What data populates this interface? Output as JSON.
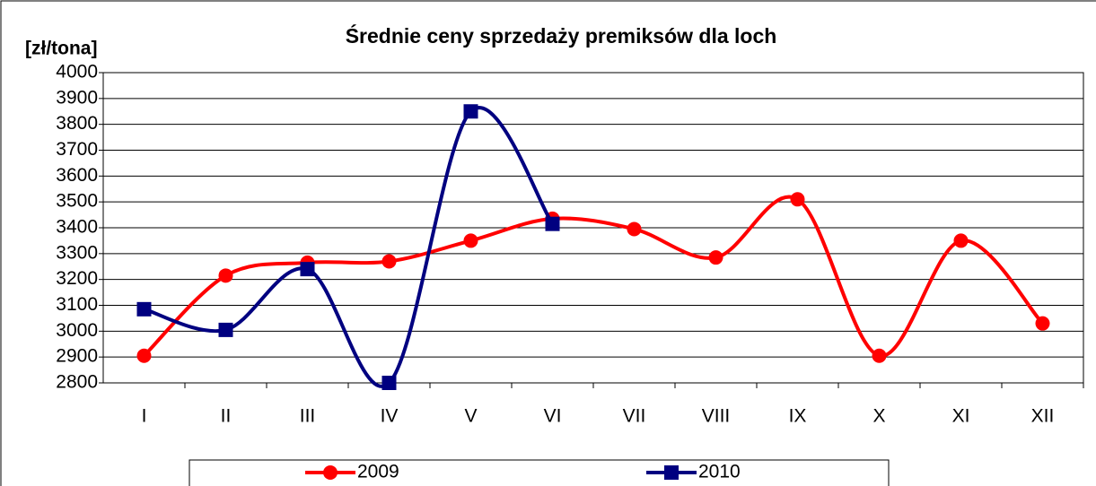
{
  "chart_data": {
    "type": "line",
    "title": "Średnie ceny sprzedaży premiksów dla loch",
    "y_label": "[zł/tona]",
    "categories": [
      "I",
      "II",
      "III",
      "IV",
      "V",
      "VI",
      "VII",
      "VIII",
      "IX",
      "X",
      "XI",
      "XII"
    ],
    "series": [
      {
        "name": "2009",
        "color": "#ff0000",
        "marker": "circle",
        "values": [
          2905,
          3215,
          3265,
          3270,
          3350,
          3435,
          3395,
          3285,
          3510,
          2905,
          3350,
          3030
        ]
      },
      {
        "name": "2010",
        "color": "#000080",
        "marker": "square",
        "values": [
          3085,
          3005,
          3240,
          2800,
          3850,
          3415,
          null,
          null,
          null,
          null,
          null,
          null
        ]
      }
    ],
    "ylim": [
      2800,
      4000
    ],
    "yticks": [
      2800,
      2900,
      3000,
      3100,
      3200,
      3300,
      3400,
      3500,
      3600,
      3700,
      3800,
      3900,
      4000
    ],
    "grid": true,
    "smooth": true,
    "legend": "bottom"
  }
}
